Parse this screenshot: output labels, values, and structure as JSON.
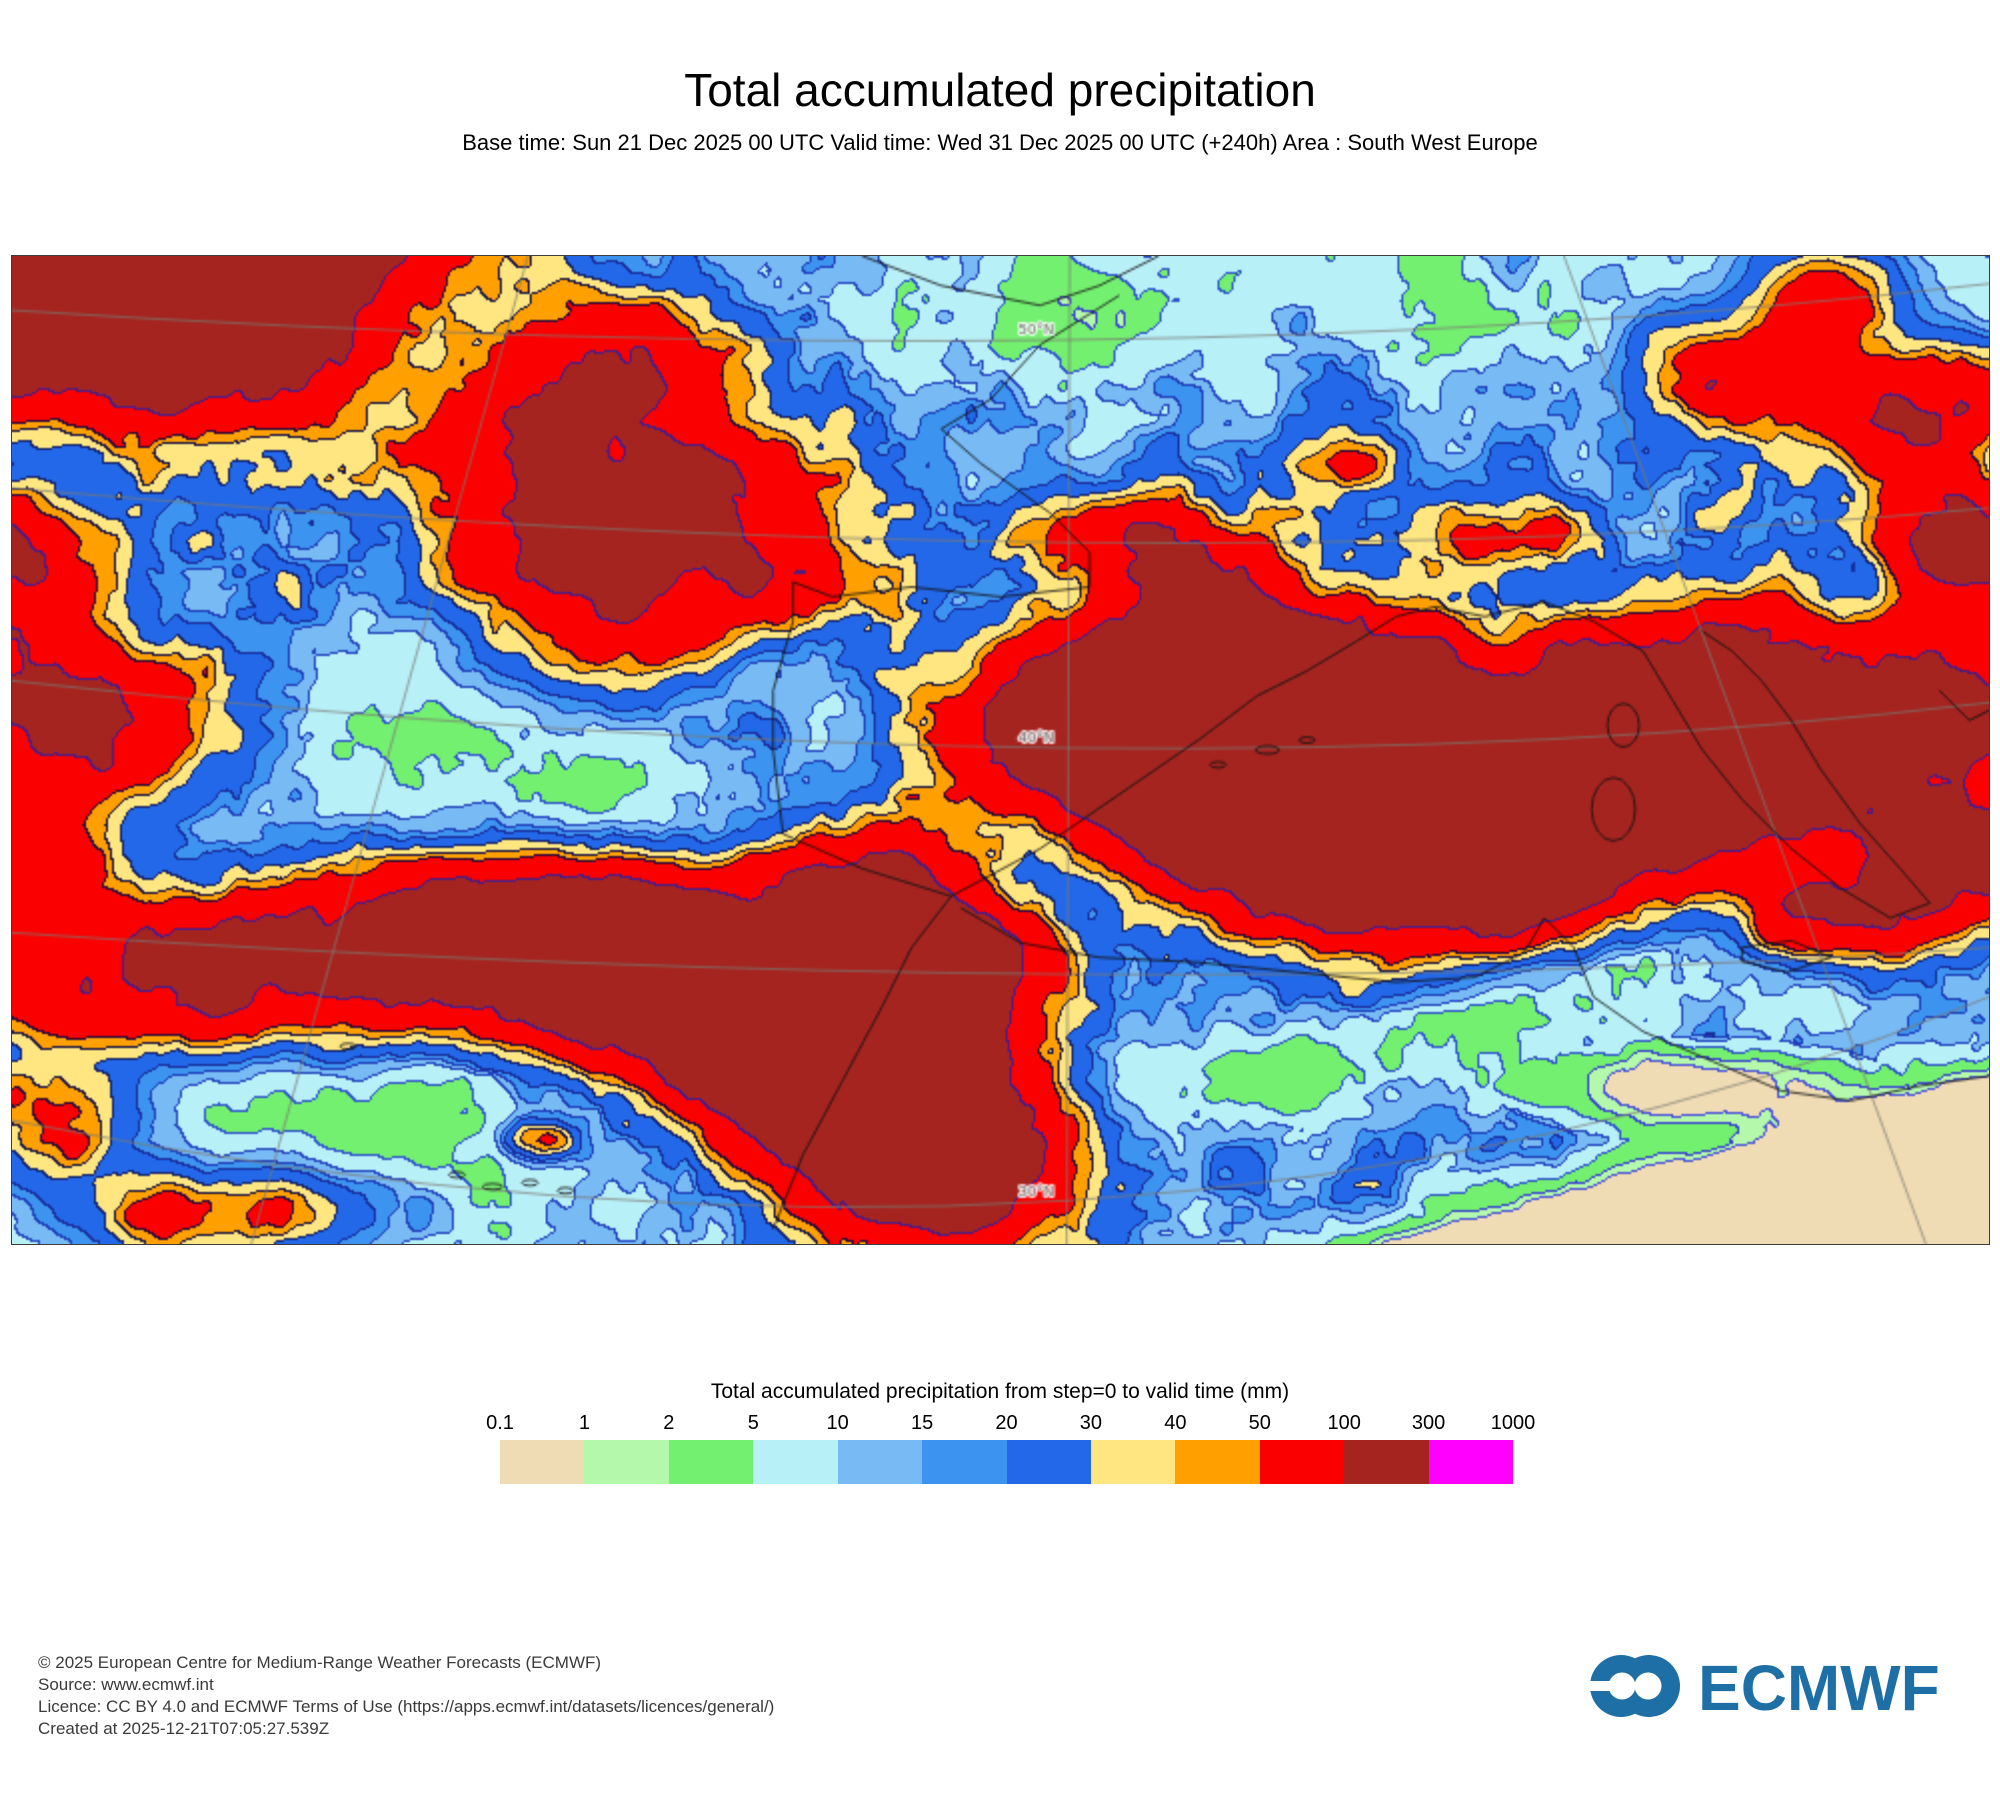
{
  "header": {
    "title": "Total accumulated precipitation",
    "subtitle": "Base time: Sun 21 Dec 2025 00 UTC Valid time: Wed 31 Dec 2025 00 UTC (+240h) Area : South West Europe"
  },
  "legend": {
    "title": "Total accumulated precipitation from step=0 to valid time (mm)",
    "tick_labels": [
      "0.1",
      "1",
      "2",
      "5",
      "10",
      "15",
      "20",
      "30",
      "40",
      "50",
      "100",
      "300",
      "1000"
    ],
    "colors": [
      "#f0dcb4",
      "#b4f8ac",
      "#74f070",
      "#b8f0f8",
      "#78baf4",
      "#3c94f0",
      "#2268e8",
      "#ffe680",
      "#ffa000",
      "#fb0000",
      "#a52420",
      "#ff00ff"
    ]
  },
  "footer": {
    "lines": [
      "© 2025 European Centre for Medium-Range Weather Forecasts (ECMWF)",
      "Source: www.ecmwf.int",
      "Licence: CC BY 4.0 and ECMWF Terms of Use (https://apps.ecmwf.int/datasets/licences/general/)",
      "Created at 2025-12-21T07:05:27.539Z"
    ],
    "logo_text": "ECMWF",
    "logo_color": "#1d6fa5"
  },
  "chart_data": {
    "type": "heatmap",
    "title": "Total accumulated precipitation",
    "units": "mm",
    "area": "South West Europe",
    "base_time": "Sun 21 Dec 2025 00 UTC",
    "valid_time": "Wed 31 Dec 2025 00 UTC",
    "step_hours": 240,
    "thresholds_mm": [
      0.1,
      1,
      2,
      5,
      10,
      15,
      20,
      30,
      40,
      50,
      100,
      300,
      1000
    ],
    "palette": [
      "#f0dcb4",
      "#b4f8ac",
      "#74f070",
      "#b8f0f8",
      "#78baf4",
      "#3c94f0",
      "#2268e8",
      "#ffe680",
      "#ffa000",
      "#fb0000",
      "#a52420",
      "#ff00ff"
    ],
    "below_min_color": "#ffffff",
    "contour_colors": [
      "#9b7fd4",
      "#4b52d9",
      "#3a43cf",
      "#2f55cc",
      "#2447c0",
      "#1f3fba",
      "#1a2f9e",
      "#15246e",
      "#1c1646",
      "#2a0a3c",
      "#4a1d86",
      "#7a007a"
    ],
    "graticule": {
      "color": "#7a7a72",
      "label_color": "#6f6f6f",
      "label_u": 0.527,
      "meridians": [
        [
          0.535,
          0.0,
          0.5335,
          1.0
        ],
        [
          0.261,
          0.0,
          0.121,
          1.0
        ],
        [
          0.785,
          0.0,
          0.968,
          1.0
        ]
      ],
      "parallels": [
        {
          "label": "50°N",
          "left": 0.055,
          "mid": 0.085,
          "right": 0.028
        },
        {
          "left": 0.235,
          "mid": 0.29,
          "right": 0.255
        },
        {
          "label": "40°N",
          "left": 0.43,
          "mid": 0.498,
          "right": 0.452
        },
        {
          "left": 0.685,
          "mid": 0.727,
          "right": 0.7
        },
        {
          "label": "30°N",
          "left": 0.875,
          "mid": 0.956,
          "right": 0.75
        }
      ]
    },
    "field_model": {
      "base_mm": 16,
      "noise_amp": 1.3,
      "bump_noise_amp": 0.55,
      "max_mm": 285,
      "france_low": {
        "u": 0.68,
        "v": 0.01,
        "su": 0.17,
        "sv": 0.105,
        "target_mm": 3.4
      },
      "desert": {
        "a": 0.571,
        "b": 1.0,
        "c": -1.331,
        "width": 0.1,
        "target_mm": 0.27,
        "coast_strip_offset": -0.13,
        "coast_strip_width": 0.05,
        "coast_strip_mm": 2.3
      },
      "dry_spots": [
        [
          0.265,
          0.4,
          0.06,
          0.11,
          4.5
        ],
        [
          0.09,
          0.9,
          0.1,
          0.08,
          5.0
        ],
        [
          0.52,
          0.07,
          0.05,
          0.045,
          2.5
        ],
        [
          0.97,
          0.035,
          0.05,
          0.04,
          2.5
        ],
        [
          0.855,
          0.845,
          0.035,
          0.018,
          30.0
        ]
      ],
      "maxima": [
        [
          0.01,
          0.02,
          0.07,
          0.06,
          320
        ],
        [
          0.1,
          0.08,
          0.05,
          0.06,
          150
        ],
        [
          0.17,
          -0.02,
          0.05,
          0.04,
          90
        ],
        [
          -0.01,
          0.33,
          0.04,
          0.06,
          85
        ],
        [
          0.03,
          0.47,
          0.045,
          0.05,
          95
        ],
        [
          -0.01,
          0.62,
          0.035,
          0.05,
          75
        ],
        [
          0.05,
          0.73,
          0.05,
          0.05,
          65
        ],
        [
          0.015,
          0.88,
          0.03,
          0.04,
          48
        ],
        [
          0.1,
          0.97,
          0.05,
          0.03,
          55
        ],
        [
          0.3,
          0.12,
          0.04,
          0.05,
          95
        ],
        [
          0.27,
          0.21,
          0.05,
          0.05,
          85
        ],
        [
          0.33,
          0.27,
          0.05,
          0.05,
          105
        ],
        [
          0.3,
          0.37,
          0.045,
          0.045,
          75
        ],
        [
          0.385,
          0.33,
          0.03,
          0.03,
          60
        ],
        [
          0.255,
          0.31,
          0.03,
          0.03,
          55
        ],
        [
          0.13,
          0.73,
          0.05,
          0.045,
          65
        ],
        [
          0.19,
          0.7,
          0.05,
          0.045,
          100
        ],
        [
          0.25,
          0.69,
          0.05,
          0.045,
          135
        ],
        [
          0.31,
          0.71,
          0.05,
          0.045,
          175
        ],
        [
          0.37,
          0.755,
          0.05,
          0.05,
          235
        ],
        [
          0.425,
          0.815,
          0.045,
          0.05,
          300
        ],
        [
          0.465,
          0.915,
          0.04,
          0.05,
          280
        ],
        [
          0.43,
          0.65,
          0.035,
          0.04,
          140
        ],
        [
          0.475,
          0.72,
          0.03,
          0.035,
          170
        ],
        [
          0.545,
          0.5,
          0.045,
          0.055,
          140
        ],
        [
          0.6,
          0.44,
          0.05,
          0.05,
          210
        ],
        [
          0.655,
          0.475,
          0.055,
          0.06,
          280
        ],
        [
          0.715,
          0.53,
          0.05,
          0.06,
          290
        ],
        [
          0.775,
          0.555,
          0.045,
          0.055,
          300
        ],
        [
          0.7,
          0.615,
          0.05,
          0.05,
          255
        ],
        [
          0.63,
          0.56,
          0.04,
          0.045,
          225
        ],
        [
          0.835,
          0.51,
          0.04,
          0.05,
          220
        ],
        [
          0.875,
          0.44,
          0.035,
          0.05,
          160
        ],
        [
          0.6,
          0.33,
          0.03,
          0.04,
          85
        ],
        [
          0.555,
          0.285,
          0.027,
          0.03,
          55
        ],
        [
          0.915,
          0.52,
          0.03,
          0.05,
          140
        ],
        [
          0.965,
          0.46,
          0.03,
          0.05,
          170
        ],
        [
          0.985,
          0.6,
          0.03,
          0.04,
          150
        ],
        [
          0.925,
          0.665,
          0.03,
          0.03,
          115
        ],
        [
          0.8,
          0.4,
          0.025,
          0.03,
          60
        ],
        [
          0.875,
          0.12,
          0.03,
          0.04,
          70
        ],
        [
          0.965,
          0.16,
          0.03,
          0.045,
          95
        ],
        [
          0.92,
          0.04,
          0.025,
          0.03,
          60
        ],
        [
          0.99,
          0.295,
          0.025,
          0.04,
          120
        ],
        [
          0.75,
          0.285,
          0.027,
          0.027,
          48
        ],
        [
          0.675,
          0.21,
          0.022,
          0.022,
          38
        ],
        [
          0.268,
          0.895,
          0.012,
          0.012,
          40
        ]
      ]
    },
    "coastlines": {
      "color": "rgba(18,18,18,0.85)",
      "paths": [
        [
          [
            0.43,
            0.0
          ],
          [
            0.47,
            0.03
          ],
          [
            0.52,
            0.05
          ],
          [
            0.55,
            0.03
          ],
          [
            0.58,
            0.0
          ]
        ],
        [
          [
            0.56,
            0.04
          ],
          [
            0.52,
            0.09
          ],
          [
            0.495,
            0.145
          ],
          [
            0.47,
            0.175
          ],
          [
            0.49,
            0.21
          ],
          [
            0.525,
            0.26
          ],
          [
            0.545,
            0.3
          ],
          [
            0.545,
            0.335
          ],
          [
            0.5,
            0.345
          ],
          [
            0.455,
            0.335
          ],
          [
            0.415,
            0.345
          ],
          [
            0.395,
            0.33
          ],
          [
            0.395,
            0.37
          ],
          [
            0.385,
            0.44
          ],
          [
            0.385,
            0.5
          ],
          [
            0.39,
            0.585
          ],
          [
            0.43,
            0.62
          ],
          [
            0.475,
            0.648
          ],
          [
            0.52,
            0.6
          ],
          [
            0.56,
            0.545
          ],
          [
            0.6,
            0.49
          ],
          [
            0.63,
            0.445
          ],
          [
            0.655,
            0.42
          ],
          [
            0.68,
            0.39
          ],
          [
            0.7,
            0.365
          ],
          [
            0.72,
            0.355
          ],
          [
            0.745,
            0.365
          ],
          [
            0.775,
            0.35
          ],
          [
            0.8,
            0.37
          ],
          [
            0.825,
            0.4
          ]
        ],
        [
          [
            0.825,
            0.4
          ],
          [
            0.84,
            0.45
          ],
          [
            0.855,
            0.5
          ],
          [
            0.875,
            0.55
          ],
          [
            0.9,
            0.6
          ],
          [
            0.925,
            0.64
          ],
          [
            0.95,
            0.67
          ],
          [
            0.97,
            0.655
          ],
          [
            0.955,
            0.62
          ],
          [
            0.935,
            0.575
          ],
          [
            0.915,
            0.52
          ],
          [
            0.9,
            0.47
          ],
          [
            0.885,
            0.43
          ],
          [
            0.87,
            0.4
          ],
          [
            0.855,
            0.38
          ]
        ],
        [
          [
            0.475,
            0.648
          ],
          [
            0.455,
            0.7
          ],
          [
            0.44,
            0.76
          ],
          [
            0.42,
            0.835
          ],
          [
            0.4,
            0.91
          ],
          [
            0.385,
            0.985
          ]
        ],
        [
          [
            0.48,
            0.66
          ],
          [
            0.51,
            0.695
          ],
          [
            0.55,
            0.71
          ],
          [
            0.6,
            0.715
          ],
          [
            0.65,
            0.725
          ],
          [
            0.7,
            0.735
          ],
          [
            0.74,
            0.73
          ],
          [
            0.765,
            0.705
          ],
          [
            0.775,
            0.67
          ],
          [
            0.79,
            0.7
          ],
          [
            0.8,
            0.75
          ],
          [
            0.825,
            0.785
          ],
          [
            0.86,
            0.815
          ],
          [
            0.895,
            0.845
          ],
          [
            0.93,
            0.855
          ],
          [
            0.965,
            0.84
          ],
          [
            1.0,
            0.83
          ]
        ],
        [
          [
            0.875,
            0.7
          ],
          [
            0.9,
            0.693
          ],
          [
            0.92,
            0.71
          ],
          [
            0.898,
            0.725
          ],
          [
            0.875,
            0.714
          ],
          [
            0.875,
            0.7
          ]
        ],
        [
          [
            0.975,
            0.44
          ],
          [
            0.99,
            0.47
          ],
          [
            1.0,
            0.46
          ]
        ]
      ],
      "islands": [
        [
          0.815,
          0.475,
          0.008,
          0.022
        ],
        [
          0.81,
          0.56,
          0.011,
          0.032
        ],
        [
          0.635,
          0.5,
          0.006,
          0.004
        ],
        [
          0.655,
          0.49,
          0.004,
          0.003
        ],
        [
          0.61,
          0.515,
          0.004,
          0.003
        ],
        [
          0.225,
          0.93,
          0.004,
          0.003
        ],
        [
          0.243,
          0.942,
          0.005,
          0.003
        ],
        [
          0.262,
          0.938,
          0.004,
          0.003
        ],
        [
          0.28,
          0.946,
          0.004,
          0.003
        ],
        [
          0.17,
          0.8,
          0.004,
          0.003
        ]
      ]
    }
  }
}
